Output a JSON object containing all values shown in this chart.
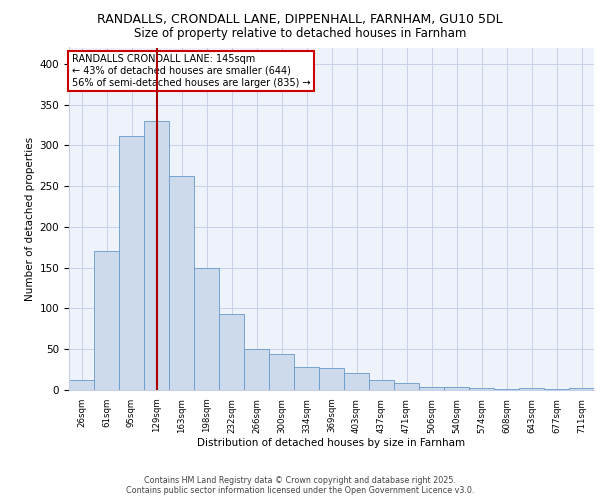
{
  "title1": "RANDALLS, CRONDALL LANE, DIPPENHALL, FARNHAM, GU10 5DL",
  "title2": "Size of property relative to detached houses in Farnham",
  "xlabel": "Distribution of detached houses by size in Farnham",
  "ylabel": "Number of detached properties",
  "bar_labels": [
    "26sqm",
    "61sqm",
    "95sqm",
    "129sqm",
    "163sqm",
    "198sqm",
    "232sqm",
    "266sqm",
    "300sqm",
    "334sqm",
    "369sqm",
    "403sqm",
    "437sqm",
    "471sqm",
    "506sqm",
    "540sqm",
    "574sqm",
    "608sqm",
    "643sqm",
    "677sqm",
    "711sqm"
  ],
  "bar_values": [
    12,
    170,
    312,
    330,
    263,
    150,
    93,
    50,
    44,
    28,
    27,
    21,
    12,
    9,
    4,
    4,
    3,
    1,
    3,
    1,
    3
  ],
  "bar_color": "#ccdaeb",
  "bar_edge_color": "#6699cc",
  "vline_x": 3,
  "vline_color": "#aa0000",
  "annotation_text": "RANDALLS CRONDALL LANE: 145sqm\n← 43% of detached houses are smaller (644)\n56% of semi-detached houses are larger (835) →",
  "annotation_box_color": "white",
  "annotation_box_edge": "#cc0000",
  "ylim": [
    0,
    420
  ],
  "yticks": [
    0,
    50,
    100,
    150,
    200,
    250,
    300,
    350,
    400
  ],
  "footer_line1": "Contains HM Land Registry data © Crown copyright and database right 2025.",
  "footer_line2": "Contains public sector information licensed under the Open Government Licence v3.0.",
  "bg_color": "#eef2fb",
  "grid_color": "#c8d0e8"
}
